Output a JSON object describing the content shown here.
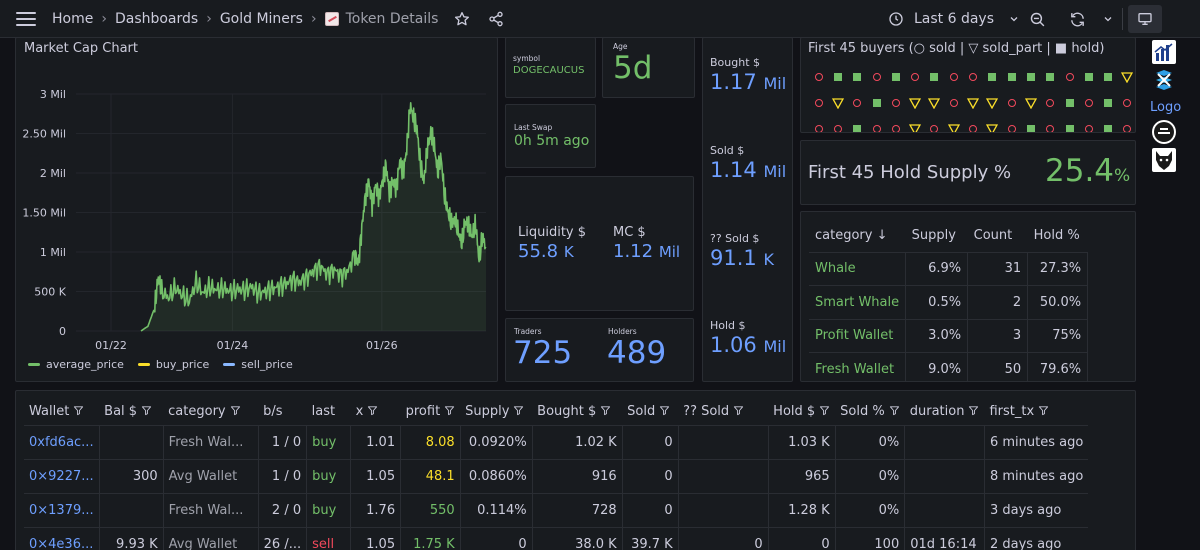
{
  "nav": {
    "breadcrumbs": [
      "Home",
      "Dashboards",
      "Gold Miners"
    ],
    "current": "Token Details",
    "time_range": "Last 6 days"
  },
  "market_cap": {
    "title": "Market Cap Chart",
    "legend": [
      {
        "label": "average_price",
        "color": "#73bf69"
      },
      {
        "label": "buy_price",
        "color": "#fade2a"
      },
      {
        "label": "sell_price",
        "color": "#8ab8ff"
      }
    ]
  },
  "chart_data": {
    "type": "line",
    "title": "Market Cap Chart",
    "xlabel": "",
    "ylabel": "",
    "y_tick_labels": [
      "0",
      "500 K",
      "1 Mil",
      "1.50 Mil",
      "2 Mil",
      "2.50 Mil",
      "3 Mil"
    ],
    "x_tick_labels": [
      "01/22",
      "01/24",
      "01/26"
    ],
    "ylim": [
      0,
      3000000
    ],
    "grid": true,
    "legend_position": "bottom-left",
    "series": [
      {
        "name": "average_price",
        "color": "#73bf69",
        "x": [
          0.0,
          0.02,
          0.04,
          0.05,
          0.06,
          0.08,
          0.1,
          0.12,
          0.14,
          0.16,
          0.18,
          0.2,
          0.22,
          0.24,
          0.26,
          0.28,
          0.3,
          0.32,
          0.34,
          0.36,
          0.38,
          0.4,
          0.42,
          0.44,
          0.46,
          0.48,
          0.5,
          0.52,
          0.54,
          0.56,
          0.58,
          0.6,
          0.62,
          0.63,
          0.64,
          0.65,
          0.66,
          0.67,
          0.68,
          0.69,
          0.7,
          0.71,
          0.72,
          0.73,
          0.74,
          0.75,
          0.76,
          0.77,
          0.78,
          0.79,
          0.8,
          0.81,
          0.82,
          0.83,
          0.84,
          0.85,
          0.86,
          0.87,
          0.88,
          0.89,
          0.9,
          0.91,
          0.92,
          0.93,
          0.94,
          0.95,
          0.96,
          0.97,
          0.98,
          0.99,
          1.0
        ],
        "y": [
          0,
          60000,
          300000,
          680000,
          500000,
          420000,
          550000,
          450000,
          380000,
          620000,
          480000,
          560000,
          520000,
          540000,
          500000,
          530000,
          520000,
          560000,
          480000,
          500000,
          540000,
          560000,
          600000,
          650000,
          620000,
          680000,
          760000,
          820000,
          720000,
          780000,
          700000,
          760000,
          980000,
          850000,
          1300000,
          1700000,
          1900000,
          1600000,
          1850000,
          1700000,
          1900000,
          2100000,
          1750000,
          1900000,
          1800000,
          2150000,
          2000000,
          2300000,
          2850000,
          2700000,
          2550000,
          2100000,
          1900000,
          2300000,
          2500000,
          2350000,
          2000000,
          2200000,
          1700000,
          1500000,
          1350000,
          1400000,
          1250000,
          1100000,
          1400000,
          1300000,
          1200000,
          1350000,
          900000,
          1200000,
          1050000
        ]
      }
    ]
  },
  "token": {
    "symbol_label": "symbol",
    "symbol": "DOGECAUCUS",
    "age_label": "Age",
    "age": "5d",
    "last_swap_label": "Last Swap",
    "last_swap": "0h 5m ago",
    "liquidity_label": "Liquidity $",
    "liquidity": "55.8",
    "liquidity_unit": "K",
    "mc_label": "MC $",
    "mc": "1.12",
    "mc_unit": "Mil",
    "traders_label": "Traders",
    "traders": "725",
    "holders_label": "Holders",
    "holders": "489"
  },
  "flows": {
    "bought_label": "Bought $",
    "bought": "1.17",
    "bought_unit": "Mil",
    "sold_label": "Sold $",
    "sold": "1.14",
    "sold_unit": "Mil",
    "unknown_sold_label": "?? Sold $",
    "unknown_sold": "91.1",
    "unknown_sold_unit": "K",
    "hold_label": "Hold $",
    "hold": "1.06",
    "hold_unit": "Mil"
  },
  "buyers": {
    "title": "First 45 buyers (○ sold | ▽ sold_part | ■ hold)",
    "rows": [
      [
        "c",
        "s",
        "s",
        "c",
        "s",
        "c",
        "s",
        "c",
        "c",
        "s",
        "s",
        "s",
        "s",
        "c",
        "s",
        "s",
        "t"
      ],
      [
        "c",
        "t",
        "c",
        "s",
        "c",
        "t",
        "t",
        "c",
        "t",
        "t",
        "c",
        "t",
        "c",
        "s",
        "c",
        "s",
        "c"
      ],
      [
        "c",
        "c",
        "s",
        "c",
        "c",
        "t",
        "c",
        "t",
        "c",
        "t",
        "c",
        "s",
        "c",
        "s",
        "c",
        "s",
        "c"
      ]
    ]
  },
  "hold_supply": {
    "label": "First 45 Hold Supply %",
    "value": "25.4",
    "unit": "%"
  },
  "categories": {
    "headers": [
      "category",
      "Supply",
      "Count",
      "Hold %"
    ],
    "sort_arrow": "↓",
    "rows": [
      [
        "Whale",
        "6.9%",
        "31",
        "27.3%"
      ],
      [
        "Smart Whale",
        "0.5%",
        "2",
        "50.0%"
      ],
      [
        "Profit Wallet",
        "3.0%",
        "3",
        "75%"
      ],
      [
        "Fresh Wallet",
        "9.0%",
        "50",
        "79.6%"
      ]
    ]
  },
  "wallets": {
    "headers": [
      "Wallet",
      "Bal $",
      "category",
      "b/s",
      "last",
      "x",
      "profit",
      "Supply",
      "Bought $",
      "Sold",
      "?? Sold",
      "Hold $",
      "Sold %",
      "duration",
      "first_tx"
    ],
    "rows": [
      [
        "0xfd6ac...",
        "",
        "Fresh Wal...",
        "1 / 0",
        "buy",
        "1.01",
        "8.08",
        "0.0920%",
        "1.02 K",
        "0",
        "",
        "1.03 K",
        "0%",
        "",
        "6 minutes ago"
      ],
      [
        "0×9227...",
        "300",
        "Avg Wallet",
        "1 / 0",
        "buy",
        "1.05",
        "48.1",
        "0.0860%",
        "916",
        "0",
        "",
        "965",
        "0%",
        "",
        "8 minutes ago"
      ],
      [
        "0×1379...",
        "",
        "Fresh Wal...",
        "2 / 0",
        "buy",
        "1.76",
        "550",
        "0.114%",
        "728",
        "0",
        "",
        "1.28 K",
        "0%",
        "",
        "3 days ago"
      ],
      [
        "0×4e36...",
        "9.93 K",
        "Avg Wallet",
        "26 /...",
        "sell",
        "1.05",
        "1.75 K",
        "0",
        "38.0 K",
        "39.7 K",
        "0",
        "0",
        "100",
        "01d 16:14",
        "2 days ago"
      ]
    ],
    "profit_colors": [
      "#fade2a",
      "#fade2a",
      "#73bf69",
      "#73bf69"
    ]
  },
  "side": {
    "logo_text": "Logo"
  },
  "icons": [
    "menu-icon",
    "star-icon",
    "share-icon",
    "clock-icon",
    "chevron-down-icon",
    "zoom-out-icon",
    "refresh-icon",
    "tv-icon",
    "filter-icon",
    "sort-down-icon"
  ]
}
